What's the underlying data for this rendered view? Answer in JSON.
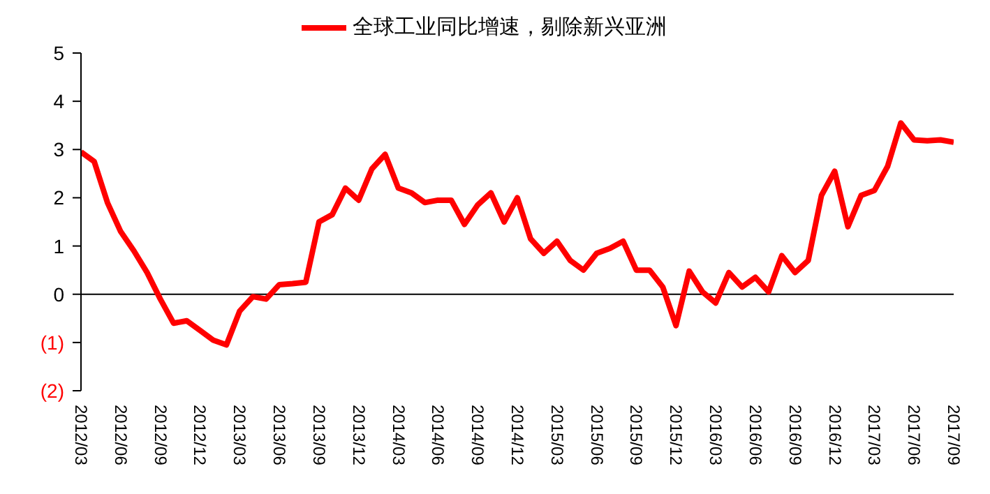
{
  "chart_data": {
    "type": "line",
    "categories": [
      "2012/03",
      null,
      null,
      "2012/06",
      null,
      null,
      "2012/09",
      null,
      null,
      "2012/12",
      null,
      null,
      "2013/03",
      null,
      null,
      "2013/06",
      null,
      null,
      "2013/09",
      null,
      null,
      "2013/12",
      null,
      null,
      "2014/03",
      null,
      null,
      "2014/06",
      null,
      null,
      "2014/09",
      null,
      null,
      "2014/12",
      null,
      null,
      "2015/03",
      null,
      null,
      "2015/06",
      null,
      null,
      "2015/09",
      null,
      null,
      "2015/12",
      null,
      null,
      "2016/03",
      null,
      null,
      "2016/06",
      null,
      null,
      "2016/09",
      null,
      null,
      "2016/12",
      null,
      null,
      "2017/03",
      null,
      null,
      "2017/06",
      null,
      null,
      "2017/09"
    ],
    "series": [
      {
        "name": "全球工业同比增速，剔除新兴亚洲",
        "color": "#ff0000",
        "values": [
          2.95,
          2.75,
          1.9,
          1.3,
          0.9,
          0.45,
          -0.1,
          -0.6,
          -0.55,
          -0.75,
          -0.95,
          -1.05,
          -0.35,
          -0.05,
          -0.1,
          0.2,
          0.22,
          0.25,
          1.5,
          1.65,
          2.2,
          1.95,
          2.6,
          2.9,
          2.2,
          2.1,
          1.9,
          1.95,
          1.95,
          1.45,
          1.85,
          2.1,
          1.5,
          2.0,
          1.15,
          0.85,
          1.1,
          0.7,
          0.5,
          0.85,
          0.95,
          1.1,
          0.5,
          0.5,
          0.15,
          -0.65,
          0.48,
          0.05,
          -0.18,
          0.45,
          0.15,
          0.35,
          0.05,
          0.8,
          0.45,
          0.7,
          2.05,
          2.55,
          1.4,
          2.05,
          2.15,
          2.65,
          3.55,
          3.2,
          3.18,
          3.2,
          3.15
        ]
      }
    ],
    "ylim": [
      -2,
      5
    ],
    "yticks": [
      {
        "value": -2,
        "label": "(2)"
      },
      {
        "value": -1,
        "label": "(1)"
      },
      0,
      1,
      2,
      3,
      4,
      5
    ],
    "ref_lines": [
      {
        "axis": "y",
        "value": 0,
        "color": "#000000"
      }
    ],
    "legend": "top",
    "marker": "none",
    "line_style": "solid"
  }
}
